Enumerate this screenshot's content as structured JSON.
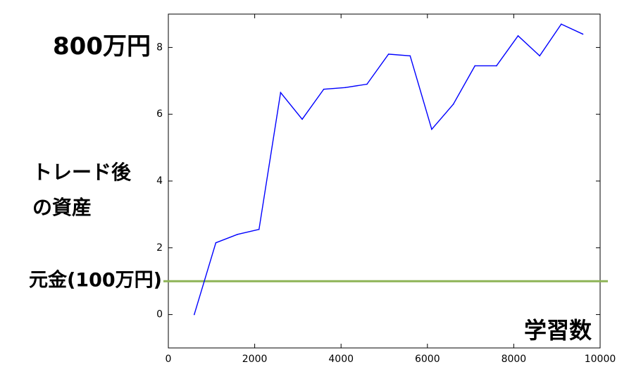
{
  "chart_data": {
    "type": "line",
    "title": "",
    "xlabel": "学習数",
    "ylabel": [
      "トレード後",
      "の資産"
    ],
    "xlim": [
      0,
      10000
    ],
    "ylim": [
      -1,
      9
    ],
    "xticks": [
      0,
      2000,
      4000,
      6000,
      8000,
      10000
    ],
    "yticks": [
      0,
      2,
      4,
      6,
      8
    ],
    "xtick_labels": [
      "0",
      "2000",
      "4000",
      "6000",
      "8000",
      "10000"
    ],
    "ytick_labels": [
      "0",
      "2",
      "4",
      "6",
      "8"
    ],
    "grid": false,
    "series": [
      {
        "color": "#0000ff",
        "x": [
          600,
          1100,
          1600,
          2100,
          2600,
          3100,
          3600,
          4100,
          4600,
          5100,
          5600,
          6100,
          6600,
          7100,
          7600,
          8100,
          8600,
          9100,
          9600
        ],
        "y": [
          0.0,
          2.15,
          2.4,
          2.55,
          6.65,
          5.85,
          6.75,
          6.8,
          6.9,
          7.8,
          7.75,
          5.55,
          6.3,
          7.45,
          7.45,
          8.35,
          7.75,
          8.7,
          8.4
        ]
      }
    ],
    "reference_line": {
      "y": 1,
      "label": "元金(100万円)",
      "color": "#8db456"
    },
    "annotations": [
      {
        "text": "800万円",
        "y": 8
      }
    ]
  }
}
